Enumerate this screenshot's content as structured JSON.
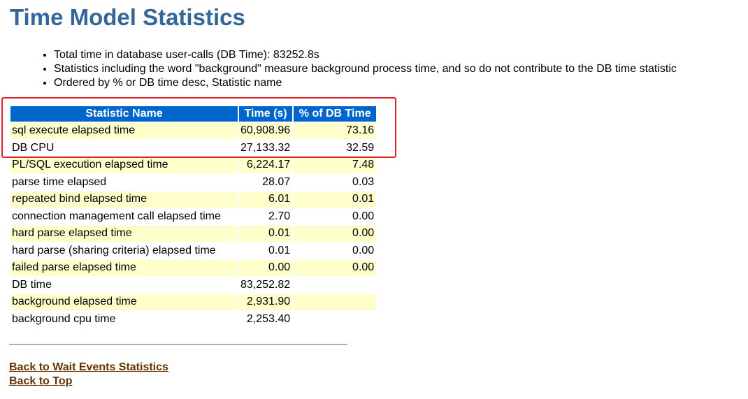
{
  "title": "Time Model Statistics",
  "bullets": [
    "Total time in database user-calls (DB Time): 83252.8s",
    "Statistics including the word \"background\" measure background process time, and so do not contribute to the DB time statistic",
    "Ordered by % or DB time desc, Statistic name"
  ],
  "table": {
    "headers": [
      "Statistic Name",
      "Time (s)",
      "% of DB Time"
    ],
    "rows": [
      {
        "name": "sql execute elapsed time",
        "time": "60,908.96",
        "pct": "73.16"
      },
      {
        "name": "DB CPU",
        "time": "27,133.32",
        "pct": "32.59"
      },
      {
        "name": "PL/SQL execution elapsed time",
        "time": "6,224.17",
        "pct": "7.48"
      },
      {
        "name": "parse time elapsed",
        "time": "28.07",
        "pct": "0.03"
      },
      {
        "name": "repeated bind elapsed time",
        "time": "6.01",
        "pct": "0.01"
      },
      {
        "name": "connection management call elapsed time",
        "time": "2.70",
        "pct": "0.00"
      },
      {
        "name": "hard parse elapsed time",
        "time": "0.01",
        "pct": "0.00"
      },
      {
        "name": "hard parse (sharing criteria) elapsed time",
        "time": "0.01",
        "pct": "0.00"
      },
      {
        "name": "failed parse elapsed time",
        "time": "0.00",
        "pct": "0.00"
      },
      {
        "name": "DB time",
        "time": "83,252.82",
        "pct": ""
      },
      {
        "name": "background elapsed time",
        "time": "2,931.90",
        "pct": ""
      },
      {
        "name": "background cpu time",
        "time": "2,253.40",
        "pct": ""
      }
    ]
  },
  "links": {
    "back_wait_events": "Back to Wait Events Statistics",
    "back_top": "Back to Top"
  },
  "colors": {
    "title": "#336699",
    "header_bg": "#0066cc",
    "row_highlight": "#ffffcc",
    "annotation_box": "#e0202a",
    "link": "#663300"
  }
}
